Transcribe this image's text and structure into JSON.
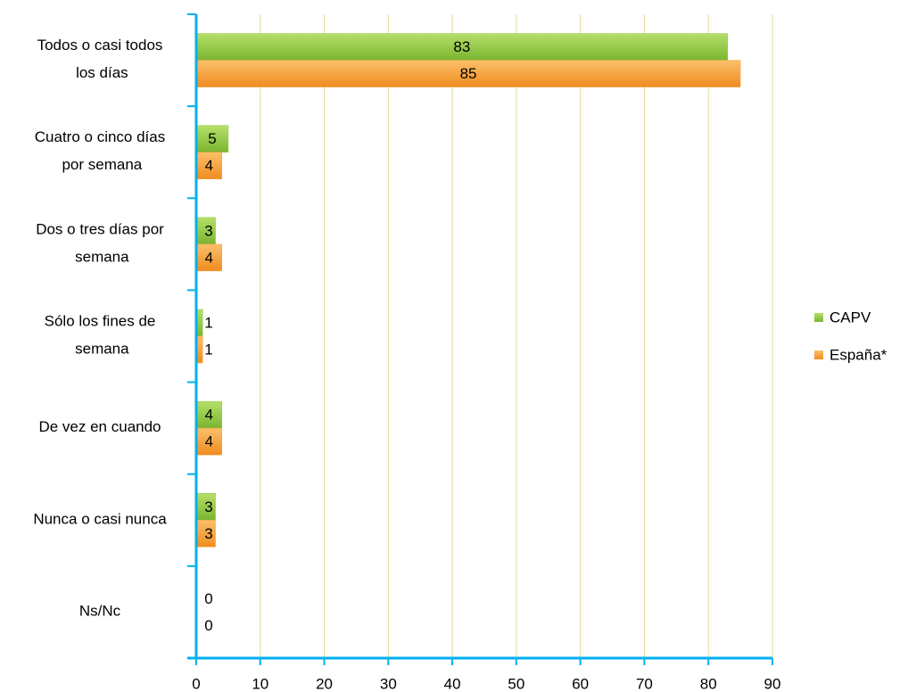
{
  "chart_data": {
    "type": "bar",
    "orientation": "horizontal",
    "categories": [
      "Todos o casi todos los días",
      "Cuatro o cinco días por semana",
      "Dos o tres días por semana",
      "Sólo los fines de semana",
      "De vez en cuando",
      "Nunca o casi nunca",
      "Ns/Nc"
    ],
    "series": [
      {
        "name": "CAPV",
        "color": "#8cc63f",
        "values": [
          83,
          5,
          3,
          1,
          4,
          3,
          0
        ]
      },
      {
        "name": "España*",
        "color": "#f7a23b",
        "values": [
          85,
          4,
          4,
          1,
          4,
          3,
          0
        ]
      }
    ],
    "xlim": [
      0,
      90
    ],
    "xticks": [
      0,
      10,
      20,
      30,
      40,
      50,
      60,
      70,
      80,
      90
    ],
    "grid": true,
    "legend": "right"
  }
}
